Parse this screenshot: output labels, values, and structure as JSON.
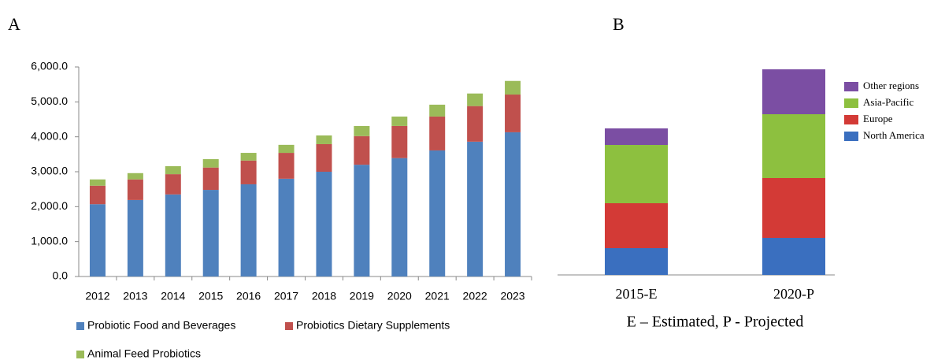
{
  "chart_data": [
    {
      "type": "stacked_bar",
      "label": "A",
      "categories": [
        "2012",
        "2013",
        "2014",
        "2015",
        "2016",
        "2017",
        "2018",
        "2019",
        "2020",
        "2021",
        "2022",
        "2023"
      ],
      "series": [
        {
          "name": "Probiotic Food and Beverages",
          "color": "#4f81bd",
          "values": [
            2070,
            2190,
            2350,
            2480,
            2640,
            2800,
            3000,
            3200,
            3390,
            3610,
            3860,
            4130
          ]
        },
        {
          "name": "Probiotics Dietary Supplements",
          "color": "#c0504d",
          "values": [
            530,
            590,
            580,
            640,
            680,
            740,
            790,
            820,
            920,
            970,
            1020,
            1080
          ]
        },
        {
          "name": "Animal Feed Probiotics",
          "color": "#9bbb59",
          "values": [
            180,
            180,
            230,
            240,
            220,
            230,
            250,
            290,
            270,
            340,
            360,
            390
          ]
        }
      ],
      "ylim": [
        0,
        6000
      ],
      "yticks": [
        {
          "value": 0,
          "label": "0.0"
        },
        {
          "value": 1000,
          "label": "1,000.0"
        },
        {
          "value": 2000,
          "label": "2,000.0"
        },
        {
          "value": 3000,
          "label": "3,000.0"
        },
        {
          "value": 4000,
          "label": "4,000.0"
        },
        {
          "value": 5000,
          "label": "5,000.0"
        },
        {
          "value": 6000,
          "label": "6,000.0"
        }
      ],
      "legend": "bottom"
    },
    {
      "type": "stacked_bar",
      "label": "B",
      "annotation": "E – Estimated, P - Projected",
      "categories": [
        "2015-E",
        "2020-P"
      ],
      "series": [
        {
          "name": "North America",
          "color": "#3a6fbf",
          "values": [
            34,
            47
          ]
        },
        {
          "name": "Europe",
          "color": "#d33a36",
          "values": [
            57,
            76
          ]
        },
        {
          "name": "Asia-Pacific",
          "color": "#8dc03f",
          "values": [
            74,
            81
          ]
        },
        {
          "name": "Other regions",
          "color": "#7b4ea3",
          "values": [
            21,
            57
          ]
        }
      ],
      "legend": "right"
    }
  ]
}
